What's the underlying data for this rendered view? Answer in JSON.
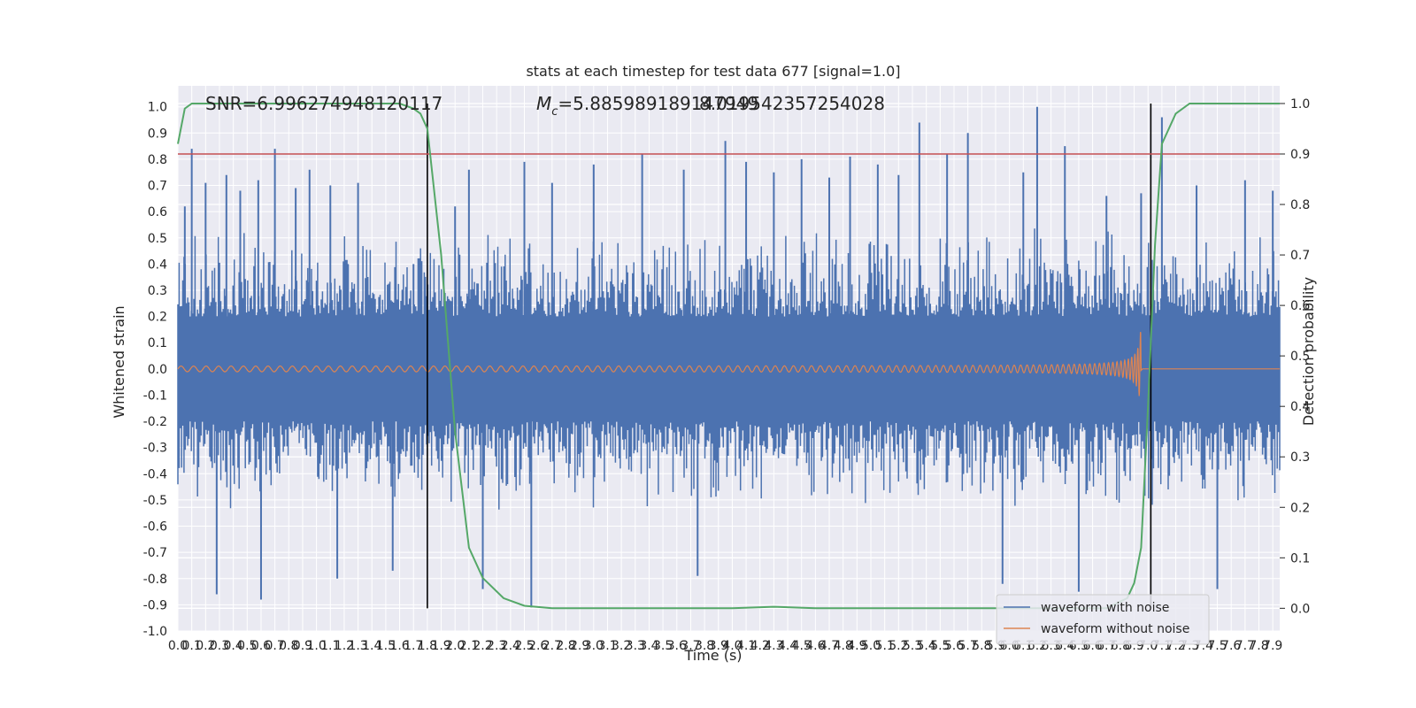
{
  "chart_data": {
    "type": "line",
    "title": "stats at each timestep for test data 677 [signal=1.0]",
    "xlabel": "Time (s)",
    "ylabel_left": "Whitened strain",
    "ylabel_right": "Detection probability",
    "xlim": [
      0.0,
      7.95
    ],
    "ylim_left": [
      -1.0,
      1.08
    ],
    "ylim_right": [
      -0.045,
      1.035
    ],
    "x_ticks": [
      "0.0",
      "0.1",
      "0.2",
      "0.3",
      "0.4",
      "0.5",
      "0.6",
      "0.7",
      "0.8",
      "0.9",
      "1.0",
      "1.1",
      "1.2",
      "1.3",
      "1.4",
      "1.5",
      "1.6",
      "1.7",
      "1.8",
      "1.9",
      "2.0",
      "2.1",
      "2.2",
      "2.3",
      "2.4",
      "2.5",
      "2.6",
      "2.7",
      "2.8",
      "2.9",
      "3.0",
      "3.1",
      "3.2",
      "3.3",
      "3.4",
      "3.5",
      "3.6",
      "3.7",
      "3.8",
      "3.9",
      "4.0",
      "4.1",
      "4.2",
      "4.3",
      "4.4",
      "4.5",
      "4.6",
      "4.7",
      "4.8",
      "4.9",
      "5.0",
      "5.1",
      "5.2",
      "5.3",
      "5.4",
      "5.5",
      "5.6",
      "5.7",
      "5.8",
      "5.9",
      "6.0",
      "6.1",
      "6.2",
      "6.3",
      "6.4",
      "6.5",
      "6.6",
      "6.7",
      "6.8",
      "6.9",
      "7.0",
      "7.1",
      "7.2",
      "7.3",
      "7.4",
      "7.5",
      "7.6",
      "7.7",
      "7.8",
      "7.9"
    ],
    "y_ticks_left": [
      "-1.0",
      "-0.9",
      "-0.8",
      "-0.7",
      "-0.6",
      "-0.5",
      "-0.4",
      "-0.3",
      "-0.2",
      "-0.1",
      "0.0",
      "0.1",
      "0.2",
      "0.3",
      "0.4",
      "0.5",
      "0.6",
      "0.7",
      "0.8",
      "0.9",
      "1.0"
    ],
    "y_ticks_right": [
      "0.0",
      "0.1",
      "0.2",
      "0.3",
      "0.4",
      "0.5",
      "0.6",
      "0.7",
      "0.8",
      "0.9",
      "1.0"
    ],
    "annotations": {
      "snr": "SNR=6.996274948120117",
      "mc_text": "=5.885989189147949",
      "mc_symbol": "M",
      "mc_sub": "c",
      "overlap_text": "8.019542357254028"
    },
    "vertical_lines_x": [
      1.8,
      7.02
    ],
    "threshold_right": 0.9,
    "noise_envelope": {
      "core_band": [
        -0.2,
        0.2
      ],
      "typical_peak": 0.55,
      "max_positive": 1.0,
      "max_negative": -0.91
    },
    "series": [
      {
        "name": "waveform with noise",
        "color": "#4c72b0",
        "axis": "left",
        "spikes": [
          {
            "x": 0.05,
            "value": 0.62
          },
          {
            "x": 0.1,
            "value": 0.84
          },
          {
            "x": 0.2,
            "value": 0.71
          },
          {
            "x": 0.28,
            "value": -0.86
          },
          {
            "x": 0.35,
            "value": 0.74
          },
          {
            "x": 0.45,
            "value": 0.68
          },
          {
            "x": 0.58,
            "value": 0.72
          },
          {
            "x": 0.6,
            "value": -0.88
          },
          {
            "x": 0.7,
            "value": 0.84
          },
          {
            "x": 0.85,
            "value": 0.69
          },
          {
            "x": 0.95,
            "value": 0.76
          },
          {
            "x": 1.1,
            "value": 0.7
          },
          {
            "x": 1.15,
            "value": -0.8
          },
          {
            "x": 1.3,
            "value": 0.71
          },
          {
            "x": 1.55,
            "value": -0.77
          },
          {
            "x": 1.7,
            "value": 0.4
          },
          {
            "x": 2.0,
            "value": 0.62
          },
          {
            "x": 2.1,
            "value": 0.76
          },
          {
            "x": 2.2,
            "value": -0.84
          },
          {
            "x": 2.5,
            "value": 0.79
          },
          {
            "x": 2.55,
            "value": -0.91
          },
          {
            "x": 2.7,
            "value": 0.71
          },
          {
            "x": 3.0,
            "value": 0.78
          },
          {
            "x": 3.35,
            "value": 0.82
          },
          {
            "x": 3.65,
            "value": 0.76
          },
          {
            "x": 3.75,
            "value": -0.79
          },
          {
            "x": 3.95,
            "value": 0.87
          },
          {
            "x": 4.1,
            "value": 0.79
          },
          {
            "x": 4.3,
            "value": 0.75
          },
          {
            "x": 4.5,
            "value": 0.8
          },
          {
            "x": 4.7,
            "value": 0.73
          },
          {
            "x": 4.85,
            "value": 0.81
          },
          {
            "x": 5.05,
            "value": 0.78
          },
          {
            "x": 5.2,
            "value": 0.74
          },
          {
            "x": 5.35,
            "value": 0.94
          },
          {
            "x": 5.55,
            "value": 0.82
          },
          {
            "x": 5.7,
            "value": 0.9
          },
          {
            "x": 5.95,
            "value": -0.82
          },
          {
            "x": 6.1,
            "value": 0.75
          },
          {
            "x": 6.2,
            "value": 1.0
          },
          {
            "x": 6.4,
            "value": 0.85
          },
          {
            "x": 6.5,
            "value": -0.85
          },
          {
            "x": 6.7,
            "value": 0.66
          },
          {
            "x": 6.95,
            "value": 0.67
          },
          {
            "x": 7.1,
            "value": 0.96
          },
          {
            "x": 7.35,
            "value": 0.7
          },
          {
            "x": 7.5,
            "value": -0.84
          },
          {
            "x": 7.7,
            "value": 0.72
          },
          {
            "x": 7.9,
            "value": 0.68
          }
        ]
      },
      {
        "name": "waveform without noise",
        "color": "#dd8452",
        "axis": "left",
        "chirp_x_range": [
          0.0,
          6.95
        ],
        "chirp_amplitude_start": 0.01,
        "chirp_amplitude_peak": 0.19,
        "after_merger_value": 0.0
      },
      {
        "name": "Detection probability",
        "color": "#55a868",
        "axis": "right",
        "x": [
          0.0,
          0.05,
          0.1,
          0.2,
          0.5,
          1.0,
          1.4,
          1.6,
          1.7,
          1.75,
          1.8,
          1.9,
          2.0,
          2.1,
          2.2,
          2.35,
          2.5,
          2.7,
          3.0,
          4.0,
          4.3,
          4.6,
          5.0,
          6.0,
          6.7,
          6.85,
          6.9,
          6.95,
          7.0,
          7.05,
          7.1,
          7.2,
          7.3,
          7.4,
          7.5,
          7.95
        ],
        "y": [
          0.92,
          0.99,
          1.0,
          1.0,
          1.0,
          1.0,
          1.0,
          1.0,
          0.99,
          0.98,
          0.95,
          0.7,
          0.35,
          0.12,
          0.06,
          0.02,
          0.005,
          0.0,
          0.0,
          0.0,
          0.003,
          0.0,
          0.0,
          0.0,
          0.0,
          0.02,
          0.05,
          0.12,
          0.4,
          0.72,
          0.92,
          0.98,
          1.0,
          1.0,
          1.0,
          1.0
        ]
      },
      {
        "name": "threshold",
        "color": "#c44e52",
        "axis": "right",
        "value": 0.9
      }
    ],
    "legend": {
      "placement": "lower-right",
      "entries": [
        "waveform with noise",
        "waveform without noise"
      ]
    },
    "grid": true
  }
}
